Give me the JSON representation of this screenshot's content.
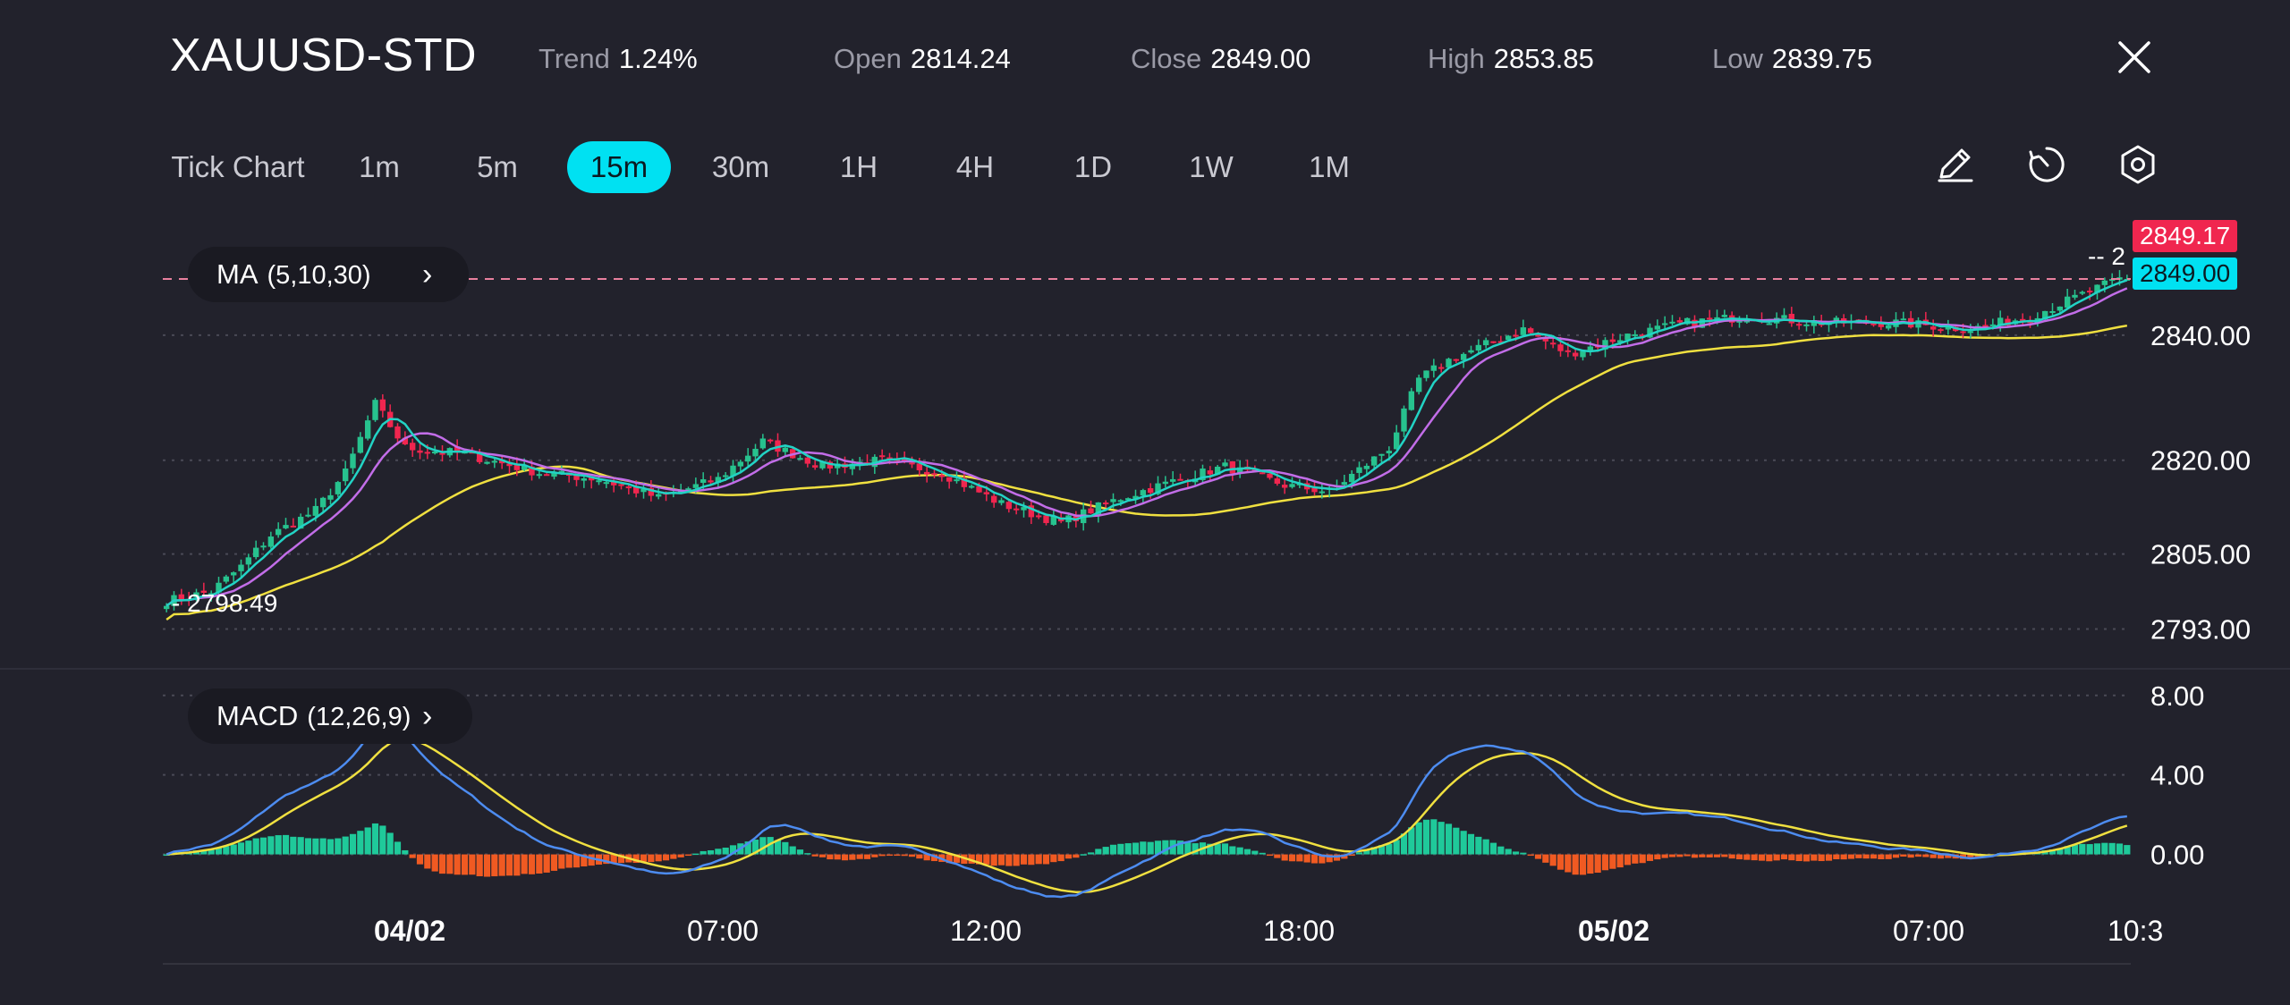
{
  "header": {
    "symbol": "XAUUSD-STD",
    "stats": [
      {
        "key": "Trend",
        "value": "1.24%"
      },
      {
        "key": "Open",
        "value": "2814.24"
      },
      {
        "key": "Close",
        "value": "2849.00"
      },
      {
        "key": "High",
        "value": "2853.85"
      },
      {
        "key": "Low",
        "value": "2839.75"
      }
    ],
    "close_icon": "close-icon"
  },
  "timeframes": {
    "tick_label": "Tick Chart",
    "items": [
      "1m",
      "5m",
      "15m",
      "30m",
      "1H",
      "4H",
      "1D",
      "1W",
      "1M"
    ],
    "active": "15m"
  },
  "tools": [
    "pencil-icon",
    "timer-icon",
    "settings-icon"
  ],
  "indicators": {
    "ma": {
      "name": "MA",
      "params": "(5,10,30)"
    },
    "macd": {
      "name": "MACD",
      "params": "(12,26,9)"
    }
  },
  "colors": {
    "up": "#27c28e",
    "down": "#f0264f",
    "ma5": "#22d3c5",
    "ma10": "#c26de8",
    "ma30": "#f0e040",
    "macd_line": "#4d8cf0",
    "signal_line": "#f0e040",
    "hist_up": "#1fc99a",
    "hist_down": "#f05a22",
    "accent": "#00e1f2"
  },
  "chart_data": {
    "type": "candlestick",
    "price_axis": {
      "ticks": [
        2840,
        2820,
        2805,
        2793
      ],
      "tick_labels": [
        "2840.00",
        "2820.00",
        "2805.00",
        "2793.00"
      ],
      "range": [
        2789.5,
        2855
      ]
    },
    "price_labels": {
      "bid": "2849.17",
      "close": "2849.00",
      "low_marker": "2798.49",
      "partial": "2"
    },
    "time_labels": [
      {
        "label": "04/02",
        "bold": true
      },
      {
        "label": "07:00",
        "bold": false
      },
      {
        "label": "12:00",
        "bold": false
      },
      {
        "label": "18:00",
        "bold": false
      },
      {
        "label": "05/02",
        "bold": true
      },
      {
        "label": "07:00",
        "bold": false
      },
      {
        "label": "10:3",
        "bold": false
      }
    ],
    "price_anchors": [
      [
        0,
        2797.5
      ],
      [
        6,
        2799
      ],
      [
        10,
        2803
      ],
      [
        14,
        2808
      ],
      [
        20,
        2812
      ],
      [
        24,
        2818
      ],
      [
        28,
        2829
      ],
      [
        32,
        2822
      ],
      [
        40,
        2821
      ],
      [
        50,
        2818
      ],
      [
        58,
        2817
      ],
      [
        66,
        2814
      ],
      [
        74,
        2817
      ],
      [
        80,
        2823
      ],
      [
        88,
        2819
      ],
      [
        96,
        2820
      ],
      [
        104,
        2818
      ],
      [
        112,
        2813
      ],
      [
        120,
        2810
      ],
      [
        128,
        2814
      ],
      [
        136,
        2817
      ],
      [
        142,
        2819
      ],
      [
        150,
        2816
      ],
      [
        156,
        2815
      ],
      [
        164,
        2822
      ],
      [
        168,
        2833
      ],
      [
        172,
        2836
      ],
      [
        178,
        2839
      ],
      [
        182,
        2841
      ],
      [
        188,
        2837
      ],
      [
        196,
        2840
      ],
      [
        204,
        2842
      ],
      [
        212,
        2843
      ],
      [
        222,
        2842
      ],
      [
        232,
        2842
      ],
      [
        242,
        2841
      ],
      [
        250,
        2843
      ],
      [
        254,
        2845
      ],
      [
        258,
        2847
      ],
      [
        262,
        2849
      ]
    ],
    "macd_axis": {
      "ticks": [
        8,
        4,
        0
      ],
      "tick_labels": [
        "8.00",
        "4.00",
        "0.00"
      ],
      "range": [
        -2.0,
        8.8
      ]
    }
  }
}
